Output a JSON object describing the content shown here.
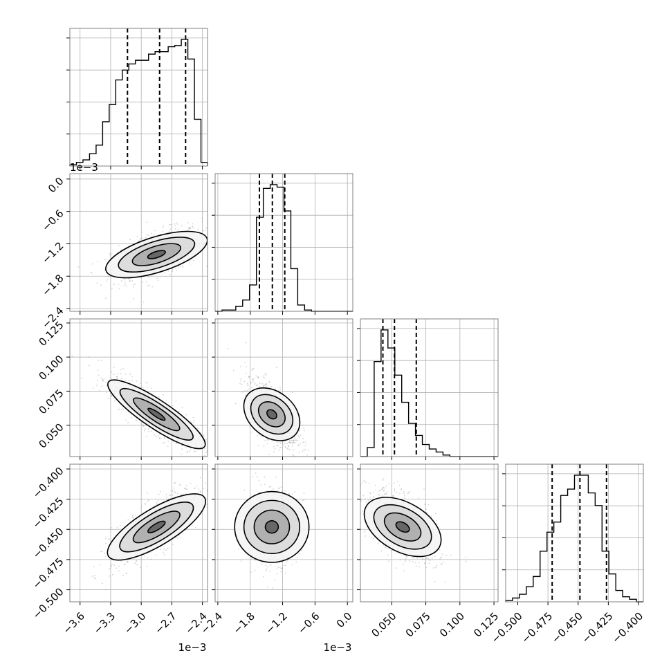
{
  "chart_data": {
    "type": "corner",
    "parameters": [
      {
        "range": [
          -3.7,
          -2.35
        ],
        "ticks": [
          -3.6,
          -3.3,
          -3.0,
          -2.7,
          -2.4
        ],
        "tick_labels": [
          "−3.6",
          "−3.3",
          "−3.0",
          "−2.7",
          "−2.4"
        ],
        "offset_label": "1e−3",
        "quantiles": [
          -3.135,
          -2.82,
          -2.565
        ],
        "mean": -2.85,
        "sd": 0.22,
        "tilt": -0.6
      },
      {
        "range": [
          -2.45,
          0.1
        ],
        "ticks": [
          -2.4,
          -1.8,
          -1.2,
          -0.6,
          0.0
        ],
        "tick_labels": [
          "−2.4",
          "−1.8",
          "−1.2",
          "−0.6",
          "0.0"
        ],
        "offset_label": "1e−3",
        "quantiles": [
          -1.63,
          -1.39,
          -1.16
        ],
        "mean": -1.4,
        "sd": 0.24,
        "tilt": 0
      },
      {
        "range": [
          0.027,
          0.128
        ],
        "ticks": [
          0.05,
          0.075,
          0.1,
          0.125
        ],
        "tick_labels": [
          "0.050",
          "0.075",
          "0.100",
          "0.125"
        ],
        "offset_label": "",
        "quantiles": [
          0.0435,
          0.052,
          0.068
        ],
        "mean": 0.058,
        "sd": 0.013,
        "skew": 0.9
      },
      {
        "range": [
          -0.51,
          -0.396
        ],
        "ticks": [
          -0.5,
          -0.475,
          -0.45,
          -0.425,
          -0.4
        ],
        "tick_labels": [
          "−0.500",
          "−0.475",
          "−0.450",
          "−0.425",
          "−0.400"
        ],
        "offset_label": "",
        "quantiles": [
          -0.4715,
          -0.4485,
          -0.4265
        ],
        "mean": -0.448,
        "sd": 0.015,
        "tilt": 0
      }
    ],
    "hist_row1": [
      1,
      3,
      5,
      10,
      17,
      36,
      50,
      70,
      78,
      83,
      86,
      86,
      91,
      93,
      93,
      97,
      98,
      103,
      87,
      38,
      3
    ],
    "hist_row2": [
      0,
      1,
      1,
      4,
      9,
      21,
      75,
      98,
      101,
      99,
      80,
      34,
      5,
      1,
      0,
      0,
      0,
      0,
      0,
      0
    ],
    "hist_row3": [
      0,
      6,
      63,
      84,
      72,
      54,
      36,
      22,
      14,
      8,
      5,
      3,
      1,
      0,
      0,
      0,
      0,
      0,
      0,
      0
    ],
    "hist_row4": [
      1,
      3,
      6,
      12,
      20,
      40,
      55,
      63,
      84,
      89,
      100,
      100,
      86,
      76,
      40,
      22,
      9,
      4,
      2,
      0
    ],
    "ylim_2d": {
      "p1": [
        -2.45,
        0.1
      ],
      "p2": [
        0.027,
        0.128
      ],
      "p3": [
        -0.51,
        -0.396
      ]
    },
    "pairs": [
      {
        "x": 0,
        "y": 1,
        "corr": 0.55
      },
      {
        "x": 0,
        "y": 2,
        "corr": -0.85
      },
      {
        "x": 1,
        "y": 2,
        "corr": -0.6
      },
      {
        "x": 0,
        "y": 3,
        "corr": 0.75
      },
      {
        "x": 1,
        "y": 3,
        "corr": 0.05
      },
      {
        "x": 2,
        "y": 3,
        "corr": -0.55
      }
    ],
    "grid": true,
    "colors": {
      "line": "#000000",
      "points": "#808080",
      "grid": "#b0b0b0",
      "frame": "#808080"
    }
  }
}
